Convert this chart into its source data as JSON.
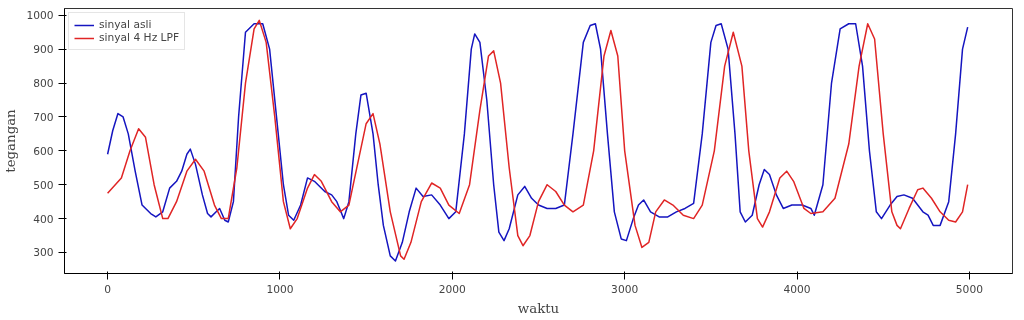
{
  "chart_data": {
    "type": "line",
    "xlabel": "waktu",
    "ylabel": "tegangan",
    "xlim": [
      -250,
      5250
    ],
    "xticks": [
      0,
      1000,
      2000,
      3000,
      4000,
      5000
    ],
    "ylim": [
      238,
      1020
    ],
    "yticks": [
      300,
      400,
      500,
      600,
      700,
      800,
      900,
      1000
    ],
    "grid": false,
    "legend": "top left",
    "series": [
      {
        "name": "sinyal asli",
        "color": "#1515c0",
        "x": [
          0,
          30,
          60,
          90,
          120,
          160,
          200,
          250,
          280,
          320,
          360,
          400,
          430,
          460,
          480,
          510,
          550,
          580,
          600,
          630,
          650,
          680,
          700,
          730,
          760,
          800,
          850,
          900,
          940,
          980,
          1020,
          1050,
          1080,
          1120,
          1160,
          1200,
          1260,
          1300,
          1330,
          1370,
          1400,
          1440,
          1470,
          1500,
          1540,
          1570,
          1600,
          1640,
          1670,
          1710,
          1750,
          1790,
          1830,
          1880,
          1930,
          1980,
          2020,
          2070,
          2110,
          2130,
          2160,
          2200,
          2240,
          2270,
          2300,
          2330,
          2380,
          2420,
          2460,
          2500,
          2550,
          2600,
          2650,
          2700,
          2760,
          2800,
          2830,
          2860,
          2900,
          2940,
          2980,
          3010,
          3050,
          3080,
          3110,
          3150,
          3200,
          3250,
          3300,
          3350,
          3400,
          3450,
          3500,
          3530,
          3560,
          3600,
          3640,
          3670,
          3700,
          3740,
          3780,
          3810,
          3840,
          3880,
          3920,
          3970,
          4030,
          4080,
          4100,
          4150,
          4200,
          4250,
          4300,
          4340,
          4380,
          4420,
          4460,
          4490,
          4540,
          4580,
          4620,
          4670,
          4700,
          4730,
          4760,
          4790,
          4830,
          4880,
          4920,
          4960,
          4990
        ],
        "values": [
          590,
          660,
          710,
          700,
          650,
          540,
          440,
          415,
          405,
          420,
          490,
          510,
          540,
          590,
          605,
          560,
          470,
          415,
          405,
          420,
          430,
          395,
          390,
          450,
          700,
          950,
          975,
          975,
          900,
          700,
          500,
          410,
          395,
          440,
          520,
          510,
          480,
          470,
          450,
          400,
          450,
          650,
          765,
          770,
          650,
          500,
          380,
          290,
          275,
          330,
          420,
          490,
          465,
          470,
          440,
          400,
          420,
          650,
          900,
          945,
          920,
          750,
          500,
          360,
          335,
          370,
          470,
          495,
          460,
          440,
          430,
          430,
          440,
          650,
          920,
          970,
          975,
          900,
          650,
          420,
          340,
          335,
          400,
          440,
          455,
          420,
          405,
          405,
          420,
          430,
          445,
          650,
          920,
          970,
          975,
          900,
          650,
          420,
          390,
          410,
          500,
          545,
          530,
          470,
          430,
          440,
          440,
          430,
          410,
          500,
          800,
          960,
          975,
          975,
          850,
          600,
          420,
          400,
          440,
          465,
          470,
          460,
          440,
          420,
          410,
          380,
          380,
          450,
          650,
          900,
          965
        ]
      },
      {
        "name": "sinyal 4 Hz LPF",
        "color": "#e02525",
        "x": [
          0,
          80,
          130,
          180,
          220,
          270,
          320,
          350,
          400,
          460,
          510,
          560,
          620,
          660,
          700,
          750,
          800,
          850,
          880,
          920,
          970,
          1020,
          1060,
          1100,
          1160,
          1200,
          1240,
          1300,
          1350,
          1400,
          1450,
          1500,
          1540,
          1580,
          1640,
          1700,
          1720,
          1760,
          1820,
          1880,
          1930,
          1980,
          2040,
          2100,
          2160,
          2210,
          2240,
          2280,
          2330,
          2380,
          2410,
          2450,
          2500,
          2550,
          2600,
          2650,
          2700,
          2760,
          2820,
          2880,
          2920,
          2960,
          3000,
          3060,
          3100,
          3140,
          3180,
          3230,
          3280,
          3340,
          3400,
          3450,
          3520,
          3580,
          3630,
          3680,
          3720,
          3770,
          3800,
          3840,
          3900,
          3940,
          3980,
          4040,
          4080,
          4150,
          4220,
          4300,
          4360,
          4410,
          4450,
          4500,
          4550,
          4580,
          4600,
          4650,
          4700,
          4730,
          4780,
          4830,
          4880,
          4920,
          4960,
          4990
        ],
        "values": [
          475,
          520,
          600,
          665,
          640,
          500,
          400,
          400,
          450,
          540,
          575,
          540,
          440,
          400,
          400,
          550,
          800,
          960,
          985,
          920,
          700,
          450,
          370,
          400,
          490,
          530,
          510,
          450,
          420,
          440,
          560,
          680,
          710,
          620,
          420,
          290,
          280,
          330,
          450,
          505,
          490,
          440,
          415,
          500,
          720,
          880,
          895,
          800,
          550,
          350,
          320,
          350,
          450,
          500,
          480,
          440,
          420,
          440,
          600,
          880,
          955,
          880,
          600,
          380,
          315,
          330,
          420,
          455,
          440,
          410,
          400,
          440,
          600,
          850,
          950,
          850,
          600,
          400,
          375,
          420,
          520,
          540,
          510,
          430,
          415,
          420,
          460,
          620,
          850,
          975,
          930,
          650,
          420,
          380,
          370,
          430,
          485,
          490,
          460,
          420,
          395,
          390,
          420,
          500
        ]
      }
    ]
  }
}
